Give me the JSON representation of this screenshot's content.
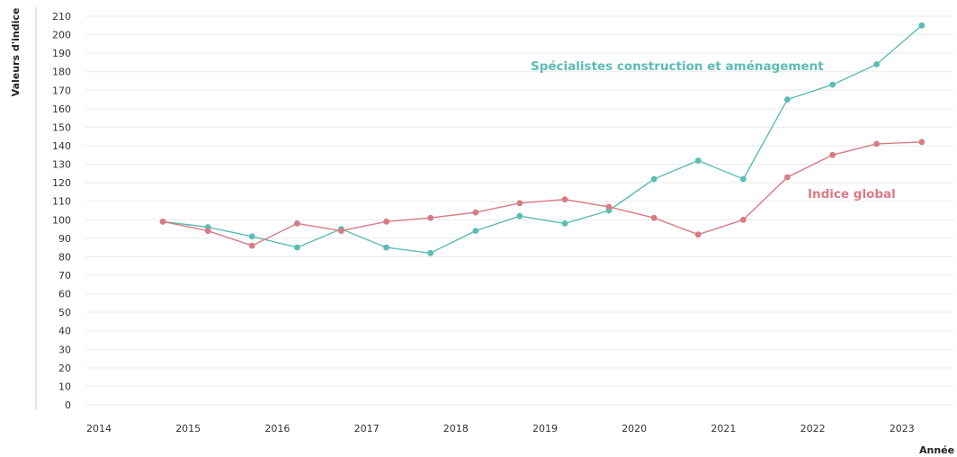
{
  "chart_data": {
    "type": "line",
    "ylabel": "Valeurs d'indice",
    "xlabel": "Année",
    "ylim": [
      0,
      210
    ],
    "y_ticks": [
      0,
      10,
      20,
      30,
      40,
      50,
      60,
      70,
      80,
      90,
      100,
      110,
      120,
      130,
      140,
      150,
      160,
      170,
      180,
      190,
      200,
      210
    ],
    "x_ticks": [
      "2014",
      "2015",
      "2016",
      "2017",
      "2018",
      "2019",
      "2020",
      "2021",
      "2022",
      "2023"
    ],
    "grid": true,
    "legend": "inline labels near series",
    "series": [
      {
        "name": "Spécialistes construction et aménagement",
        "color": "#5bbcb6",
        "label_position": "above series, upper right",
        "points": [
          {
            "x": "2014-T4",
            "y": 99
          },
          {
            "x": "2015-T2",
            "y": 96
          },
          {
            "x": "2015-T4",
            "y": 91
          },
          {
            "x": "2016-T2",
            "y": 85
          },
          {
            "x": "2016-T4",
            "y": 95
          },
          {
            "x": "2017-T2",
            "y": 85
          },
          {
            "x": "2017-T4",
            "y": 82
          },
          {
            "x": "2018-T2",
            "y": 94
          },
          {
            "x": "2018-T4",
            "y": 102
          },
          {
            "x": "2019-T2",
            "y": 98
          },
          {
            "x": "2019-T4",
            "y": 105
          },
          {
            "x": "2020-T2",
            "y": 122
          },
          {
            "x": "2020-T4",
            "y": 132
          },
          {
            "x": "2021-T2",
            "y": 122
          },
          {
            "x": "2021-T4",
            "y": 165
          },
          {
            "x": "2022-T2",
            "y": 173
          },
          {
            "x": "2022-T4",
            "y": 184
          },
          {
            "x": "2023-T2",
            "y": 205
          }
        ]
      },
      {
        "name": "Indice global",
        "color": "#d97b85",
        "label_position": "right of series, below the other",
        "points": [
          {
            "x": "2014-T4",
            "y": 99
          },
          {
            "x": "2015-T2",
            "y": 94
          },
          {
            "x": "2015-T4",
            "y": 86
          },
          {
            "x": "2016-T2",
            "y": 98
          },
          {
            "x": "2016-T4",
            "y": 94
          },
          {
            "x": "2017-T2",
            "y": 99
          },
          {
            "x": "2017-T4",
            "y": 101
          },
          {
            "x": "2018-T2",
            "y": 104
          },
          {
            "x": "2018-T4",
            "y": 109
          },
          {
            "x": "2019-T2",
            "y": 111
          },
          {
            "x": "2019-T4",
            "y": 107
          },
          {
            "x": "2020-T2",
            "y": 101
          },
          {
            "x": "2020-T4",
            "y": 92
          },
          {
            "x": "2021-T2",
            "y": 100
          },
          {
            "x": "2021-T4",
            "y": 123
          },
          {
            "x": "2022-T2",
            "y": 135
          },
          {
            "x": "2022-T4",
            "y": 141
          },
          {
            "x": "2023-T2",
            "y": 142
          }
        ]
      }
    ]
  }
}
